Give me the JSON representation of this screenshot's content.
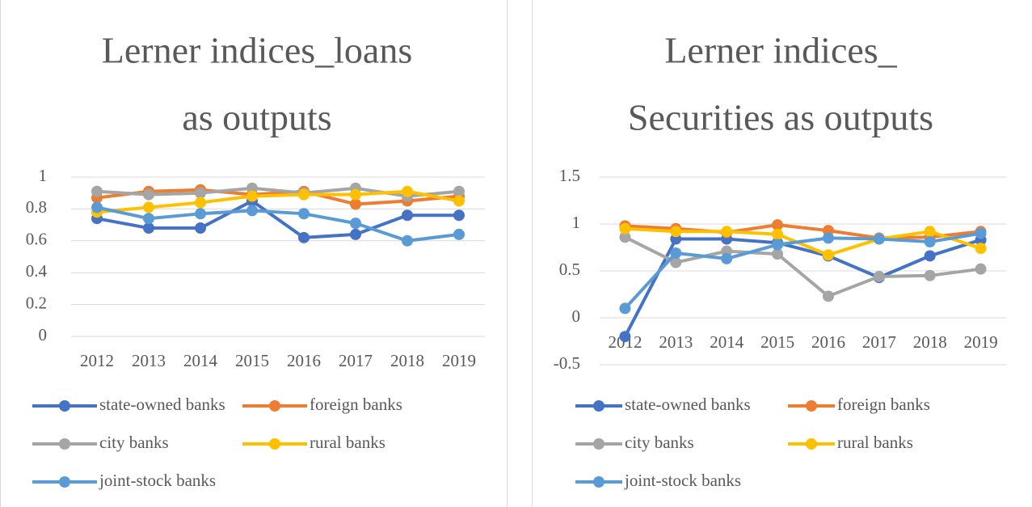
{
  "chart_data": [
    {
      "type": "line",
      "title": [
        "Lerner indices_loans",
        "as outputs"
      ],
      "categories": [
        "2012",
        "2013",
        "2014",
        "2015",
        "2016",
        "2017",
        "2018",
        "2019"
      ],
      "ylim": [
        0,
        1
      ],
      "yticks": [
        0,
        0.2,
        0.4,
        0.6,
        0.8,
        1
      ],
      "grid": true,
      "legend": "bottom",
      "series": [
        {
          "name": "state-owned banks",
          "color": "#4472c4",
          "values": [
            0.74,
            0.68,
            0.68,
            0.85,
            0.62,
            0.64,
            0.76,
            0.76
          ]
        },
        {
          "name": "foreign banks",
          "color": "#ed7d31",
          "values": [
            0.87,
            0.91,
            0.92,
            0.89,
            0.91,
            0.83,
            0.85,
            0.88
          ]
        },
        {
          "name": "city banks",
          "color": "#a5a5a5",
          "values": [
            0.91,
            0.89,
            0.9,
            0.93,
            0.9,
            0.93,
            0.88,
            0.91
          ]
        },
        {
          "name": "rural banks",
          "color": "#ffc000",
          "values": [
            0.78,
            0.81,
            0.84,
            0.88,
            0.89,
            0.89,
            0.91,
            0.85
          ]
        },
        {
          "name": "joint-stock banks",
          "color": "#5b9bd5",
          "values": [
            0.81,
            0.74,
            0.77,
            0.79,
            0.77,
            0.71,
            0.6,
            0.64
          ]
        }
      ]
    },
    {
      "type": "line",
      "title": [
        "Lerner indices_",
        "Securities as outputs"
      ],
      "categories": [
        "2012",
        "2013",
        "2014",
        "2015",
        "2016",
        "2017",
        "2018",
        "2019"
      ],
      "ylim": [
        -0.5,
        1.5
      ],
      "yticks": [
        -0.5,
        0,
        0.5,
        1,
        1.5
      ],
      "grid": true,
      "legend": "bottom",
      "series": [
        {
          "name": "state-owned banks",
          "color": "#4472c4",
          "values": [
            -0.2,
            0.84,
            0.84,
            0.8,
            0.66,
            0.43,
            0.66,
            0.83
          ]
        },
        {
          "name": "foreign banks",
          "color": "#ed7d31",
          "values": [
            0.98,
            0.95,
            0.91,
            0.99,
            0.93,
            0.85,
            0.86,
            0.92
          ]
        },
        {
          "name": "city banks",
          "color": "#a5a5a5",
          "values": [
            0.86,
            0.59,
            0.71,
            0.68,
            0.23,
            0.44,
            0.45,
            0.52
          ]
        },
        {
          "name": "rural banks",
          "color": "#ffc000",
          "values": [
            0.95,
            0.92,
            0.92,
            0.89,
            0.67,
            0.84,
            0.92,
            0.74
          ]
        },
        {
          "name": "joint-stock banks",
          "color": "#5b9bd5",
          "values": [
            0.1,
            0.69,
            0.63,
            0.78,
            0.85,
            0.84,
            0.81,
            0.9
          ]
        }
      ]
    }
  ]
}
